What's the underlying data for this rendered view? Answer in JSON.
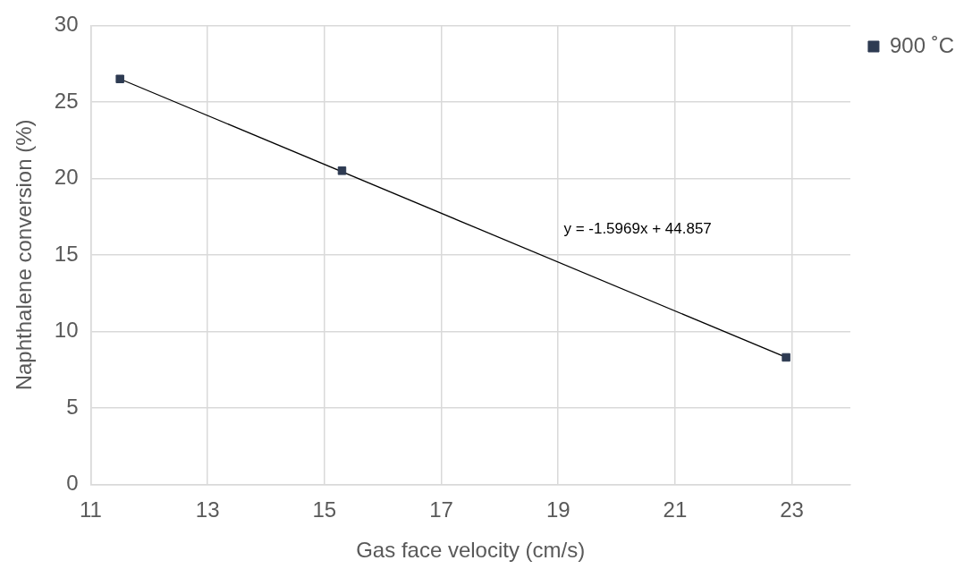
{
  "chart_data": {
    "type": "scatter",
    "xlabel": "Gas face velocity (cm/s)",
    "ylabel": "Naphthalene conversion (%)",
    "xlim": [
      11,
      24
    ],
    "xticks": [
      11,
      13,
      15,
      17,
      19,
      21,
      23
    ],
    "ylim": [
      0,
      30
    ],
    "yticks": [
      0,
      5,
      10,
      15,
      20,
      25,
      30
    ],
    "grid": true,
    "legend": "top right",
    "marker": "square",
    "series": [
      {
        "name": "900 ˚C",
        "color": "#2e3b52",
        "x": [
          11.5,
          15.3,
          22.9
        ],
        "values": [
          26.5,
          20.5,
          8.3
        ]
      },
      {
        "type": "line",
        "color": "#000000",
        "marker": "none",
        "x": [
          11.5,
          22.9
        ],
        "values": [
          26.5,
          8.3
        ]
      }
    ],
    "annotations": [
      "y = -1.5969x + 44.857"
    ]
  }
}
